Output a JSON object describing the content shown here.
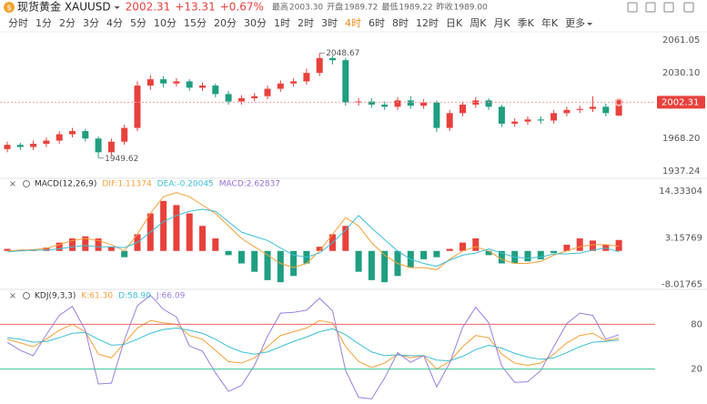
{
  "header": {
    "name": "现货黄金 XAUUSD",
    "price": "2002.31",
    "change": "+13.31",
    "change_pct": "+0.67%",
    "stats": [
      {
        "label": "最高",
        "value": "2003.30"
      },
      {
        "label": "开盘",
        "value": "1989.72"
      },
      {
        "label": "最低",
        "value": "1989.22"
      },
      {
        "label": "昨收",
        "value": "1989.00"
      }
    ]
  },
  "toolbar": {
    "tabs": [
      "分时",
      "1分",
      "2分",
      "3分",
      "4分",
      "5分",
      "10分",
      "15分",
      "20分",
      "30分",
      "1时",
      "2时",
      "3时",
      "4时",
      "6时",
      "8时",
      "12时",
      "日K",
      "周K",
      "月K",
      "季K",
      "年K",
      "更多"
    ],
    "active_index": 13
  },
  "chart_data": [
    {
      "type": "candlestick",
      "up_color": "#e8413c",
      "down_color": "#1f9e80",
      "open": [
        1958,
        1962,
        1960,
        1963,
        1966,
        1972,
        1975,
        1968,
        1955,
        1965,
        1978,
        2018,
        2024,
        2020,
        2022,
        2016,
        2018,
        2010,
        2003,
        2006,
        2008,
        2015,
        2020,
        2022,
        2030,
        2044,
        2042,
        2002,
        2003,
        2000,
        1998,
        2004,
        1999,
        2002,
        1978,
        1992,
        2000,
        2004,
        1998,
        1982,
        1984,
        1986,
        1985,
        1992,
        1995,
        1996,
        1998,
        1989.72
      ],
      "high": [
        1965,
        1964,
        1966,
        1969,
        1975,
        1978,
        1977,
        1970,
        1968,
        1981,
        2022,
        2028,
        2027,
        2025,
        2024,
        2021,
        2020,
        2013,
        2009,
        2011,
        2018,
        2023,
        2025,
        2034,
        2048.67,
        2046,
        2044,
        2006,
        2006,
        2003,
        2007,
        2008,
        2005,
        2004,
        1995,
        2003,
        2007,
        2006,
        2000,
        1987,
        1989,
        1989,
        1995,
        1998,
        1999,
        2008,
        2001,
        2003.3
      ],
      "low": [
        1955,
        1957,
        1957,
        1960,
        1963,
        1969,
        1965,
        1949.62,
        1952,
        1962,
        1975,
        2014,
        2016,
        2017,
        2013,
        2013,
        2007,
        2000,
        2000,
        2003,
        2005,
        2012,
        2017,
        2019,
        2027,
        2038,
        1999,
        1999,
        1997,
        1995,
        1995,
        1996,
        1996,
        1974,
        1975,
        1989,
        1997,
        1995,
        1979,
        1979,
        1981,
        1982,
        1982,
        1989,
        1992,
        1993,
        1989,
        1989.22
      ],
      "close": [
        1962,
        1960,
        1963,
        1966,
        1972,
        1975,
        1968,
        1955,
        1965,
        1978,
        2018,
        2024,
        2020,
        2022,
        2016,
        2018,
        2010,
        2003,
        2006,
        2008,
        2015,
        2020,
        2022,
        2030,
        2044,
        2042,
        2002,
        2003,
        2000,
        1998,
        2004,
        1999,
        2002,
        1978,
        1992,
        2000,
        2004,
        1998,
        1982,
        1984,
        1986,
        1985,
        1992,
        1995,
        1996,
        1998,
        1992,
        2002.31
      ],
      "ylim": [
        1931.22,
        2067.93
      ],
      "yticks": [
        1937.24,
        1968.2,
        1999.15,
        2030.1,
        2061.05
      ],
      "yticks_labels": [
        "1937.24",
        "1968.20",
        "1999.15",
        "2030.10",
        "2061.05"
      ],
      "last_label": "2002.31",
      "high_label_index": 24,
      "low_label_index": 7
    },
    {
      "type": "macd",
      "label": "MACD(12,26,9)",
      "ylim": [
        -9.21,
        17.19
      ],
      "yticks": [
        -8.01765,
        3.15769,
        14.33304
      ],
      "up_color": "#e8413c",
      "down_color": "#1f9e80",
      "series": [
        {
          "label": "DIF:1.11374",
          "color": "#f4a03a",
          "values": [
            0,
            0.2,
            0.3,
            0.6,
            1.5,
            2.5,
            3,
            2.5,
            1.5,
            0,
            4,
            9,
            13,
            14,
            13,
            11,
            9,
            6,
            3,
            1,
            -1,
            -3,
            -4,
            -3,
            0,
            4,
            8,
            6,
            2,
            -1,
            -3,
            -4,
            -4,
            -4.5,
            -2,
            0,
            1,
            0,
            -2,
            -3,
            -3,
            -2.5,
            -1,
            0,
            1,
            1.5,
            1.5,
            1.11374
          ]
        },
        {
          "label": "DEA:-0.20045",
          "color": "#3cbfd6",
          "values": [
            -0.2,
            0,
            0.2,
            0.2,
            0.5,
            1,
            1.3,
            1,
            1,
            0.8,
            2,
            4.5,
            7,
            8.5,
            9.5,
            10,
            9.5,
            7,
            4.5,
            3.5,
            2.5,
            0.7,
            -1,
            -1.5,
            -0.5,
            2,
            5,
            8.5,
            5.5,
            2.7,
            0,
            -2,
            -3,
            -3.7,
            -2.2,
            -1,
            -0.5,
            0.5,
            -0.5,
            -1.5,
            -1.7,
            -1.5,
            -0.7,
            -0.7,
            -0.5,
            0.2,
            0.7,
            -0.20045
          ]
        },
        {
          "label": "MACD:2.62837",
          "color": "#9b6ed6",
          "bars": true,
          "values": [
            0.5,
            0.3,
            0.2,
            0.8,
            2,
            3,
            3.5,
            3,
            1,
            -1.5,
            4,
            9,
            12,
            11,
            9,
            6,
            3,
            -1,
            -3,
            -5,
            -7,
            -7.5,
            -6,
            -3,
            1,
            4,
            6,
            -5,
            -7,
            -7.5,
            -6,
            -4,
            -2,
            -1.5,
            0.5,
            2,
            3,
            -1,
            -3,
            -3,
            -2.5,
            -2,
            -0.5,
            1.5,
            3,
            2.5,
            1.5,
            2.62837
          ]
        }
      ]
    },
    {
      "type": "kdj",
      "label": "KDJ(9,3,3)",
      "ylim": [
        -22,
        122
      ],
      "yticks": [
        20,
        80
      ],
      "ytick_colors": [
        "#3cc39a",
        "#e86a6a"
      ],
      "series": [
        {
          "label": "K:61.30",
          "color": "#f4a03a",
          "values": [
            60,
            55,
            50,
            60,
            72,
            80,
            70,
            40,
            35,
            55,
            75,
            85,
            82,
            80,
            65,
            60,
            45,
            30,
            28,
            35,
            50,
            65,
            70,
            75,
            85,
            82,
            50,
            30,
            22,
            28,
            40,
            35,
            38,
            20,
            30,
            50,
            65,
            62,
            40,
            28,
            25,
            28,
            40,
            55,
            65,
            68,
            58,
            61.3
          ]
        },
        {
          "label": "D:58.90",
          "color": "#3cbfd6",
          "values": [
            62,
            60,
            56,
            57,
            62,
            68,
            69,
            60,
            52,
            53,
            60,
            68,
            73,
            75,
            72,
            68,
            60,
            50,
            43,
            40,
            43,
            50,
            57,
            63,
            70,
            74,
            66,
            54,
            43,
            38,
            39,
            38,
            38,
            32,
            31,
            37,
            46,
            52,
            48,
            41,
            36,
            33,
            35,
            42,
            50,
            56,
            57,
            58.9
          ]
        },
        {
          "label": "J:66.09",
          "color": "#9a7fe0",
          "values": [
            56,
            45,
            38,
            66,
            92,
            104,
            72,
            0,
            1,
            59,
            105,
            119,
            100,
            90,
            51,
            44,
            15,
            -10,
            -2,
            25,
            64,
            95,
            96,
            99,
            115,
            98,
            18,
            -18,
            -20,
            8,
            42,
            29,
            38,
            -4,
            28,
            76,
            103,
            82,
            24,
            2,
            3,
            18,
            50,
            81,
            95,
            92,
            60,
            66.09
          ]
        }
      ]
    }
  ]
}
